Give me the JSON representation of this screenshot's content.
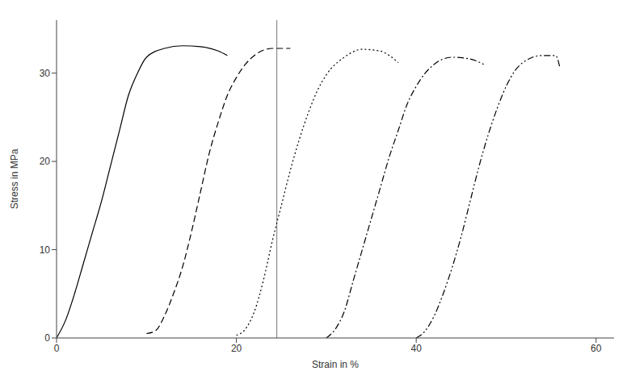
{
  "chart_data": {
    "type": "line",
    "x_label": "Strain in %",
    "y_label": "Stress in MPa",
    "xlim": [
      0,
      62
    ],
    "ylim": [
      0,
      36
    ],
    "xticks": [
      0,
      20,
      40,
      60
    ],
    "yticks": [
      0,
      10,
      20,
      30
    ],
    "grid": false,
    "vline": 24.5,
    "series": [
      {
        "color": "#000000",
        "line_style": "solid",
        "x": [
          0,
          1,
          2,
          3,
          4,
          5,
          6,
          7,
          8,
          9,
          10,
          12,
          14,
          16,
          18,
          19
        ],
        "values": [
          0,
          2,
          5,
          8.5,
          12,
          15.5,
          19.5,
          23.5,
          27.5,
          30,
          31.8,
          32.8,
          33.1,
          33,
          32.5,
          32
        ]
      },
      {
        "color": "#000000",
        "line_style": "dashed",
        "x": [
          10,
          11,
          12,
          13,
          14,
          15,
          16,
          17,
          18,
          19,
          20,
          21,
          22,
          24,
          26
        ],
        "values": [
          0.5,
          0.8,
          2.5,
          5,
          8,
          12,
          16.5,
          21,
          24.5,
          27.5,
          29.5,
          31,
          32,
          32.8,
          32.8
        ]
      },
      {
        "color": "#000000",
        "line_style": "dotted",
        "x": [
          20,
          21,
          22,
          23,
          24,
          25,
          26,
          27,
          28,
          29,
          30,
          32,
          34,
          36,
          37,
          38
        ],
        "values": [
          0.3,
          1,
          3,
          6.5,
          11,
          15,
          19,
          22.5,
          25.5,
          28,
          29.8,
          31.8,
          32.7,
          32.5,
          32,
          31.2
        ]
      },
      {
        "color": "#000000",
        "line_style": "dashdot",
        "x": [
          30,
          31,
          32,
          33,
          34,
          35,
          36,
          37,
          38,
          39,
          40,
          41,
          42,
          44,
          46,
          47.5
        ],
        "values": [
          0,
          1,
          3,
          6.5,
          10,
          13.5,
          17,
          20.5,
          23.5,
          26.5,
          28.5,
          30,
          31,
          31.8,
          31.6,
          31
        ]
      },
      {
        "color": "#000000",
        "line_style": "dashdotdot",
        "x": [
          40,
          41,
          42,
          43,
          44,
          45,
          46,
          47,
          48,
          49,
          50,
          51,
          52,
          54,
          55.5,
          56
        ],
        "values": [
          0,
          0.8,
          2.5,
          5,
          8,
          11.5,
          15.5,
          19.5,
          23,
          26,
          28.5,
          30.3,
          31.3,
          32,
          32,
          30.5
        ]
      }
    ]
  }
}
